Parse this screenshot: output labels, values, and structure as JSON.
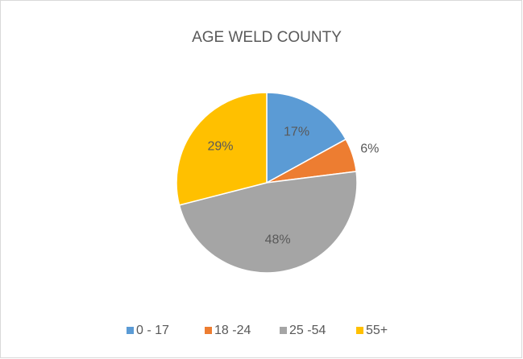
{
  "chart_data": {
    "type": "pie",
    "title": "AGE WELD COUNTY",
    "categories": [
      "0 - 17",
      "18 -24",
      "25 -54",
      "55+"
    ],
    "values": [
      17,
      6,
      48,
      29
    ],
    "value_labels": [
      "17%",
      "6%",
      "48%",
      "29%"
    ],
    "colors": [
      "#5b9bd5",
      "#ed7d31",
      "#a5a5a5",
      "#ffc000"
    ],
    "legend": "bottom"
  }
}
